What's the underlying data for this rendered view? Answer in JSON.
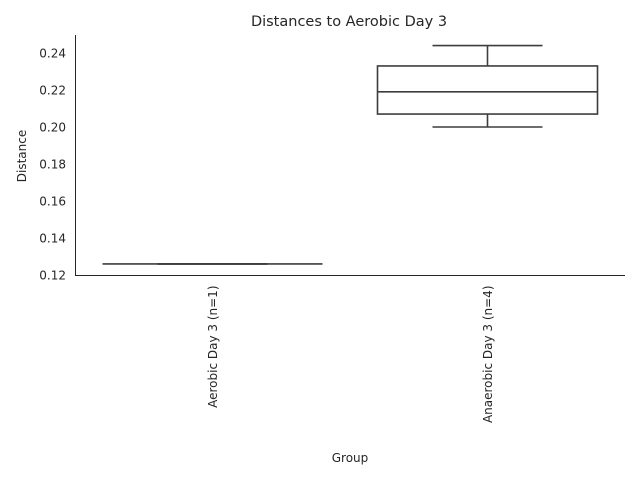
{
  "chart_data": {
    "type": "box",
    "title": "Distances to Aerobic Day 3",
    "xlabel": "Group",
    "ylabel": "Distance",
    "ylim": [
      0.12,
      0.25
    ],
    "yticks": [
      0.12,
      0.14,
      0.16,
      0.18,
      0.2,
      0.22,
      0.24
    ],
    "ytick_labels": [
      "0.12",
      "0.14",
      "0.16",
      "0.18",
      "0.20",
      "0.22",
      "0.24"
    ],
    "grid": false,
    "categories": [
      "Aerobic Day 3 (n=1)",
      "Anaerobic Day 3 (n=4)"
    ],
    "boxes": [
      {
        "category": "Aerobic Day 3 (n=1)",
        "whisker_low": 0.126,
        "q1": 0.126,
        "median": 0.126,
        "q3": 0.126,
        "whisker_high": 0.126
      },
      {
        "category": "Anaerobic Day 3 (n=4)",
        "whisker_low": 0.2,
        "q1": 0.207,
        "median": 0.219,
        "q3": 0.233,
        "whisker_high": 0.244
      }
    ]
  }
}
